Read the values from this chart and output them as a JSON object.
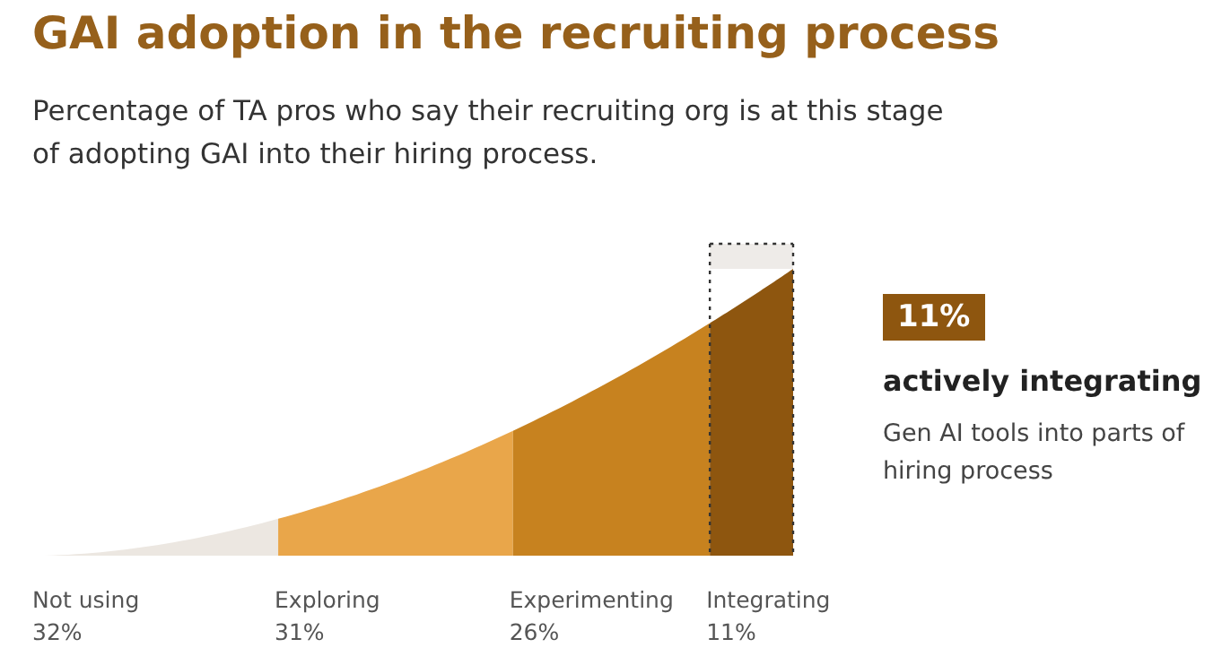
{
  "chart_data": {
    "type": "other",
    "title": "GAI adoption in the recruiting process",
    "subtitle": "Percentage of TA pros who say their recruiting org is at this stage of adopting GAI into their hiring process.",
    "categories": [
      "Not using",
      "Exploring",
      "Experimenting",
      "Integrating"
    ],
    "values": [
      32,
      31,
      26,
      11
    ],
    "colors": [
      "#ece7e1",
      "#e9a64a",
      "#c7821f",
      "#8e560f"
    ],
    "value_labels": [
      "32%",
      "31%",
      "26%",
      "11%"
    ],
    "annotations": [
      "11%",
      "actively integrating",
      "Gen AI tools into parts of hiring process"
    ]
  }
}
